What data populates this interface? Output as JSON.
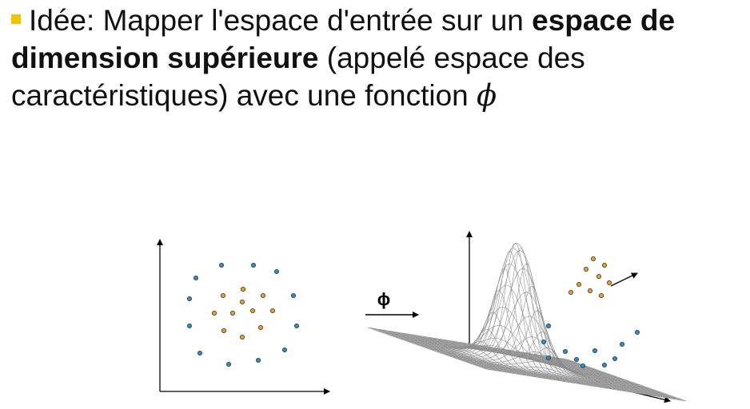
{
  "headline": {
    "t1": "Idée: Mapper l'espace d'entrée sur un ",
    "t2": "espace de dimension supérieure",
    "t3": " (appelé espace des caractéristiques) avec une fonction ",
    "symbol": "ϕ",
    "bullet_color": "#f2c400"
  },
  "diagram": {
    "arrow_label": "ϕ",
    "class_colors": {
      "inner": "#f0a020",
      "outer": "#2a8fd0"
    }
  }
}
